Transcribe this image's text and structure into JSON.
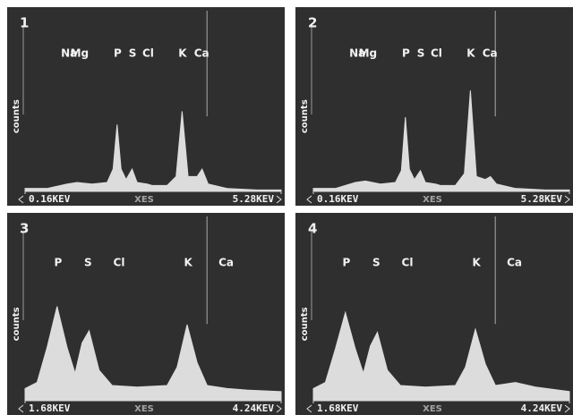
{
  "chart_data": [
    {
      "type": "area",
      "title": "1",
      "xlabel": "XES",
      "ylabel": "counts",
      "color": "#dcdcdc",
      "xlim": [
        0.16,
        5.28
      ],
      "ylim": [
        0,
        100
      ],
      "xticks": [
        {
          "value": 0.16,
          "label": "0.16KEV"
        },
        {
          "value": 5.28,
          "label": "5.28KEV"
        }
      ],
      "annotations": [
        {
          "text": "Na",
          "x": 1.04
        },
        {
          "text": "Mg",
          "x": 1.25
        },
        {
          "text": "P",
          "x": 2.01
        },
        {
          "text": "S",
          "x": 2.31
        },
        {
          "text": "Cl",
          "x": 2.62
        },
        {
          "text": "K",
          "x": 3.31
        },
        {
          "text": "Ca",
          "x": 3.69
        }
      ],
      "x": [
        0.16,
        0.6,
        1.0,
        1.2,
        1.5,
        1.8,
        1.92,
        2.0,
        2.08,
        2.18,
        2.3,
        2.4,
        2.6,
        2.7,
        3.0,
        3.18,
        3.3,
        3.42,
        3.6,
        3.7,
        3.82,
        4.2,
        4.8,
        5.28
      ],
      "values": [
        2,
        2,
        5,
        6,
        5,
        6,
        15,
        45,
        15,
        8,
        15,
        6,
        5,
        4,
        4,
        10,
        54,
        10,
        10,
        15,
        5,
        2,
        1,
        1
      ]
    },
    {
      "type": "area",
      "title": "2",
      "xlabel": "XES",
      "ylabel": "counts",
      "color": "#dcdcdc",
      "xlim": [
        0.16,
        5.28
      ],
      "ylim": [
        0,
        100
      ],
      "xticks": [
        {
          "value": 0.16,
          "label": "0.16KEV"
        },
        {
          "value": 5.28,
          "label": "5.28KEV"
        }
      ],
      "annotations": [
        {
          "text": "Na",
          "x": 1.04
        },
        {
          "text": "Mg",
          "x": 1.25
        },
        {
          "text": "P",
          "x": 2.01
        },
        {
          "text": "S",
          "x": 2.31
        },
        {
          "text": "Cl",
          "x": 2.62
        },
        {
          "text": "K",
          "x": 3.31
        },
        {
          "text": "Ca",
          "x": 3.69
        }
      ],
      "x": [
        0.16,
        0.6,
        1.0,
        1.2,
        1.5,
        1.8,
        1.92,
        2.0,
        2.08,
        2.18,
        2.3,
        2.4,
        2.6,
        2.7,
        3.0,
        3.18,
        3.3,
        3.42,
        3.6,
        3.7,
        3.82,
        4.2,
        4.8,
        5.28
      ],
      "values": [
        2,
        2,
        6,
        7,
        5,
        6,
        14,
        50,
        15,
        8,
        14,
        6,
        5,
        4,
        4,
        12,
        68,
        10,
        8,
        10,
        5,
        2,
        1,
        1
      ]
    },
    {
      "type": "area",
      "title": "3",
      "xlabel": "XES",
      "ylabel": "counts",
      "color": "#dcdcdc",
      "xlim": [
        1.68,
        4.24
      ],
      "ylim": [
        0,
        100
      ],
      "xticks": [
        {
          "value": 1.68,
          "label": "1.68KEV"
        },
        {
          "value": 4.24,
          "label": "4.24KEV"
        }
      ],
      "annotations": [
        {
          "text": "P",
          "x": 2.01
        },
        {
          "text": "S",
          "x": 2.31
        },
        {
          "text": "Cl",
          "x": 2.62
        },
        {
          "text": "K",
          "x": 3.31
        },
        {
          "text": "Ca",
          "x": 3.69
        }
      ],
      "x": [
        1.68,
        1.8,
        1.9,
        2.0,
        2.1,
        2.18,
        2.25,
        2.32,
        2.42,
        2.55,
        2.8,
        3.1,
        3.2,
        3.3,
        3.4,
        3.5,
        3.7,
        3.9,
        4.24
      ],
      "values": [
        8,
        12,
        35,
        62,
        35,
        18,
        38,
        46,
        20,
        10,
        9,
        10,
        22,
        50,
        25,
        10,
        8,
        7,
        6
      ]
    },
    {
      "type": "area",
      "title": "4",
      "xlabel": "XES",
      "ylabel": "counts",
      "color": "#dcdcdc",
      "xlim": [
        1.68,
        4.24
      ],
      "ylim": [
        0,
        100
      ],
      "xticks": [
        {
          "value": 1.68,
          "label": "1.68KEV"
        },
        {
          "value": 4.24,
          "label": "4.24KEV"
        }
      ],
      "annotations": [
        {
          "text": "P",
          "x": 2.01
        },
        {
          "text": "S",
          "x": 2.31
        },
        {
          "text": "Cl",
          "x": 2.62
        },
        {
          "text": "K",
          "x": 3.31
        },
        {
          "text": "Ca",
          "x": 3.69
        }
      ],
      "x": [
        1.68,
        1.8,
        1.9,
        2.0,
        2.1,
        2.18,
        2.25,
        2.32,
        2.42,
        2.55,
        2.8,
        3.1,
        3.2,
        3.3,
        3.4,
        3.5,
        3.7,
        3.9,
        4.24
      ],
      "values": [
        8,
        12,
        34,
        58,
        34,
        18,
        36,
        45,
        20,
        10,
        9,
        10,
        22,
        47,
        24,
        10,
        12,
        9,
        6
      ]
    }
  ]
}
